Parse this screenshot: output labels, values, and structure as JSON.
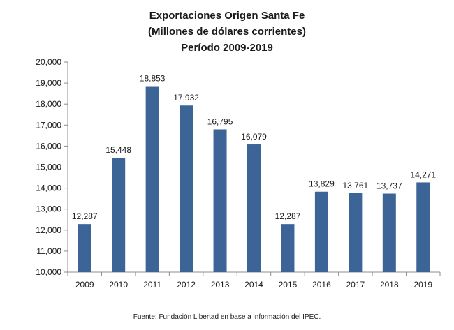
{
  "chart_data": {
    "type": "bar",
    "title_lines": [
      "Exportaciones Origen Santa Fe",
      "(Millones de dólares corrientes)",
      "Período 2009-2019"
    ],
    "categories": [
      "2009",
      "2010",
      "2011",
      "2012",
      "2013",
      "2014",
      "2015",
      "2016",
      "2017",
      "2018",
      "2019"
    ],
    "values": [
      12287,
      15448,
      18853,
      17932,
      16795,
      16079,
      12287,
      13829,
      13761,
      13737,
      14271
    ],
    "data_labels": [
      "12,287",
      "15,448",
      "18,853",
      "17,932",
      "16,795",
      "16,079",
      "12,287",
      "13,829",
      "13,761",
      "13,737",
      "14,271"
    ],
    "y_ticks": [
      10000,
      11000,
      12000,
      13000,
      14000,
      15000,
      16000,
      17000,
      18000,
      19000,
      20000
    ],
    "y_tick_labels": [
      "10,000",
      "11,000",
      "12,000",
      "13,000",
      "14,000",
      "15,000",
      "16,000",
      "17,000",
      "18,000",
      "19,000",
      "20,000"
    ],
    "ylim": [
      10000,
      20000
    ],
    "grid": false,
    "legend": "none",
    "bar_color": "#3C6496",
    "source": "Fuente: Fundación Libertad en base a información del IPEC."
  }
}
